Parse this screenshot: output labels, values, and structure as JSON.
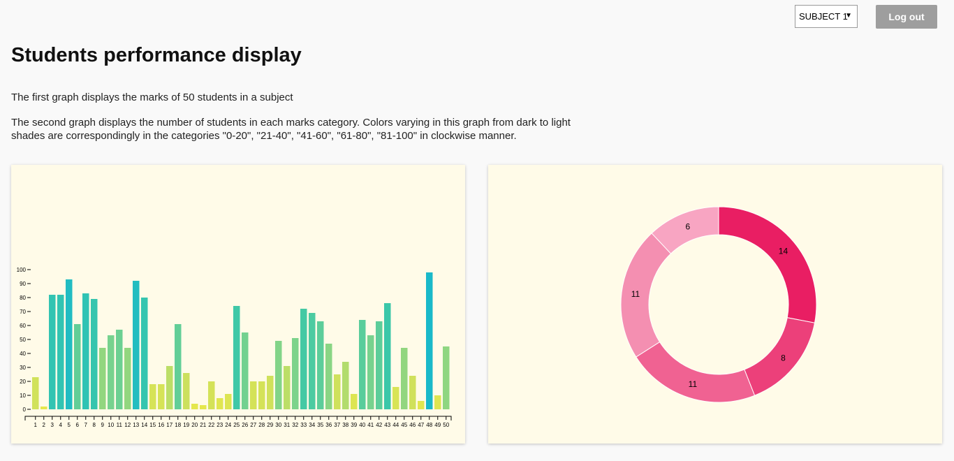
{
  "header": {
    "subject_select_value": "SUBJECT 1",
    "logout_label": "Log out"
  },
  "page": {
    "title": "Students performance display",
    "description_1": "The first graph displays the marks of 50 students in a subject",
    "description_2": "The second graph displays the number of students in each marks category. Colors varying in this graph from dark to light shades are correspondingly in the categories \"0-20\", \"21-40\", \"41-60\", \"61-80\", \"81-100\" in clockwise manner."
  },
  "chart_data": [
    {
      "type": "bar",
      "title": "",
      "xlabel": "",
      "ylabel": "",
      "ylim": [
        0,
        100
      ],
      "yticks": [
        0,
        10,
        20,
        30,
        40,
        50,
        60,
        70,
        80,
        90,
        100
      ],
      "categories": [
        "1",
        "2",
        "3",
        "4",
        "5",
        "6",
        "7",
        "8",
        "9",
        "10",
        "11",
        "12",
        "13",
        "14",
        "15",
        "16",
        "17",
        "18",
        "19",
        "20",
        "21",
        "22",
        "23",
        "24",
        "25",
        "26",
        "27",
        "28",
        "29",
        "30",
        "31",
        "32",
        "33",
        "34",
        "35",
        "36",
        "37",
        "38",
        "39",
        "40",
        "41",
        "42",
        "43",
        "44",
        "45",
        "46",
        "47",
        "48",
        "49",
        "50"
      ],
      "values": [
        23,
        2,
        82,
        82,
        93,
        61,
        83,
        79,
        44,
        53,
        57,
        44,
        92,
        80,
        18,
        18,
        31,
        61,
        26,
        4,
        3,
        20,
        8,
        11,
        74,
        55,
        20,
        20,
        24,
        49,
        31,
        51,
        72,
        69,
        63,
        47,
        25,
        34,
        11,
        64,
        53,
        63,
        76,
        16,
        44,
        24,
        6,
        98,
        10,
        45
      ],
      "color_scale": [
        "#e8e84a",
        "#cfe15c",
        "#7fd38a",
        "#3cc8a8",
        "#17b8cc"
      ]
    },
    {
      "type": "pie",
      "style": "donut",
      "categories": [
        "0-20",
        "21-40",
        "41-60",
        "61-80",
        "81-100"
      ],
      "values": [
        14,
        8,
        11,
        11,
        6
      ],
      "colors": [
        "#e91e63",
        "#ec407a",
        "#f06292",
        "#f48fb1",
        "#f8a5c2"
      ],
      "grid": false,
      "legend": "none"
    }
  ]
}
